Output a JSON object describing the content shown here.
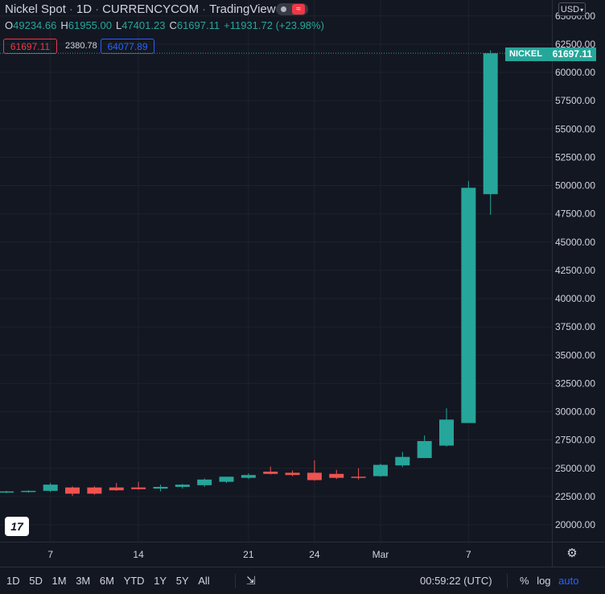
{
  "header": {
    "symbol": "Nickel Spot",
    "interval": "1D",
    "exchange": "CURRENCYCOM",
    "platform": "TradingView"
  },
  "ohlc": {
    "o_label": "O",
    "o": "49234.66",
    "h_label": "H",
    "h": "61955.00",
    "l_label": "L",
    "l": "47401.23",
    "c_label": "C",
    "c": "61697.11",
    "change": "+11931.72 (+23.98%)"
  },
  "quote": {
    "bid": "61697.11",
    "spread": "2380.78",
    "ask": "64077.89"
  },
  "currency": "USD",
  "price_tag": {
    "symbol": "NICKEL",
    "value": "61697.11"
  },
  "bottom": {
    "ranges": [
      "1D",
      "5D",
      "1M",
      "3M",
      "6M",
      "YTD",
      "1Y",
      "5Y",
      "All"
    ],
    "clock": "00:59:22 (UTC)",
    "percent": "%",
    "log": "log",
    "auto": "auto"
  },
  "colors": {
    "up": "#26a69a",
    "down": "#ef5350",
    "background": "#131722",
    "grid": "#1e222d",
    "text": "#d1d4dc"
  },
  "icons": [
    "live-dot-icon",
    "wave-icon",
    "tradingview-logo-icon",
    "gear-icon",
    "goto-date-icon"
  ],
  "chart_data": {
    "type": "candlestick",
    "title": "Nickel Spot · 1D · CURRENCYCOM",
    "ylim": [
      18000,
      66000
    ],
    "y_ticks": [
      20000,
      22500,
      25000,
      27500,
      30000,
      32500,
      35000,
      37500,
      40000,
      42500,
      45000,
      47500,
      50000,
      52500,
      55000,
      57500,
      60000,
      62500,
      65000
    ],
    "y_tick_labels": [
      "20000.00",
      "22500.00",
      "25000.00",
      "27500.00",
      "30000.00",
      "32500.00",
      "35000.00",
      "37500.00",
      "40000.00",
      "42500.00",
      "45000.00",
      "47500.00",
      "50000.00",
      "52500.00",
      "55000.00",
      "57500.00",
      "60000.00",
      "62500.00",
      "65000.00"
    ],
    "x_ticks": [
      {
        "index": 2,
        "label": "7"
      },
      {
        "index": 6,
        "label": "14"
      },
      {
        "index": 11,
        "label": "21"
      },
      {
        "index": 14,
        "label": "24"
      },
      {
        "index": 17,
        "label": "Mar"
      },
      {
        "index": 21,
        "label": "7"
      }
    ],
    "grid": true,
    "last_price": 61697.11,
    "candles": [
      {
        "o": 22900,
        "h": 23000,
        "l": 22800,
        "c": 22950
      },
      {
        "o": 22950,
        "h": 23050,
        "l": 22850,
        "c": 23000
      },
      {
        "o": 23000,
        "h": 23700,
        "l": 22900,
        "c": 23550
      },
      {
        "o": 23300,
        "h": 23400,
        "l": 22550,
        "c": 22750
      },
      {
        "o": 23300,
        "h": 23400,
        "l": 22650,
        "c": 22750
      },
      {
        "o": 23300,
        "h": 23700,
        "l": 23000,
        "c": 23050
      },
      {
        "o": 23300,
        "h": 23800,
        "l": 23100,
        "c": 23150
      },
      {
        "o": 23200,
        "h": 23550,
        "l": 22950,
        "c": 23350
      },
      {
        "o": 23350,
        "h": 23600,
        "l": 23200,
        "c": 23550
      },
      {
        "o": 23500,
        "h": 24100,
        "l": 23350,
        "c": 24000
      },
      {
        "o": 23800,
        "h": 24250,
        "l": 23700,
        "c": 24250
      },
      {
        "o": 24150,
        "h": 24550,
        "l": 24050,
        "c": 24400
      },
      {
        "o": 24700,
        "h": 25150,
        "l": 24450,
        "c": 24500
      },
      {
        "o": 24600,
        "h": 24800,
        "l": 24300,
        "c": 24400
      },
      {
        "o": 24600,
        "h": 25700,
        "l": 23900,
        "c": 23950
      },
      {
        "o": 24500,
        "h": 24850,
        "l": 24050,
        "c": 24150
      },
      {
        "o": 24250,
        "h": 25000,
        "l": 24000,
        "c": 24200
      },
      {
        "o": 24300,
        "h": 25400,
        "l": 24250,
        "c": 25300
      },
      {
        "o": 25250,
        "h": 26450,
        "l": 25100,
        "c": 26000
      },
      {
        "o": 25900,
        "h": 27900,
        "l": 25900,
        "c": 27400
      },
      {
        "o": 27000,
        "h": 30300,
        "l": 26900,
        "c": 29300
      },
      {
        "o": 29000,
        "h": 50400,
        "l": 29000,
        "c": 49800
      },
      {
        "o": 49234.66,
        "h": 61955.0,
        "l": 47401.23,
        "c": 61697.11
      }
    ]
  }
}
